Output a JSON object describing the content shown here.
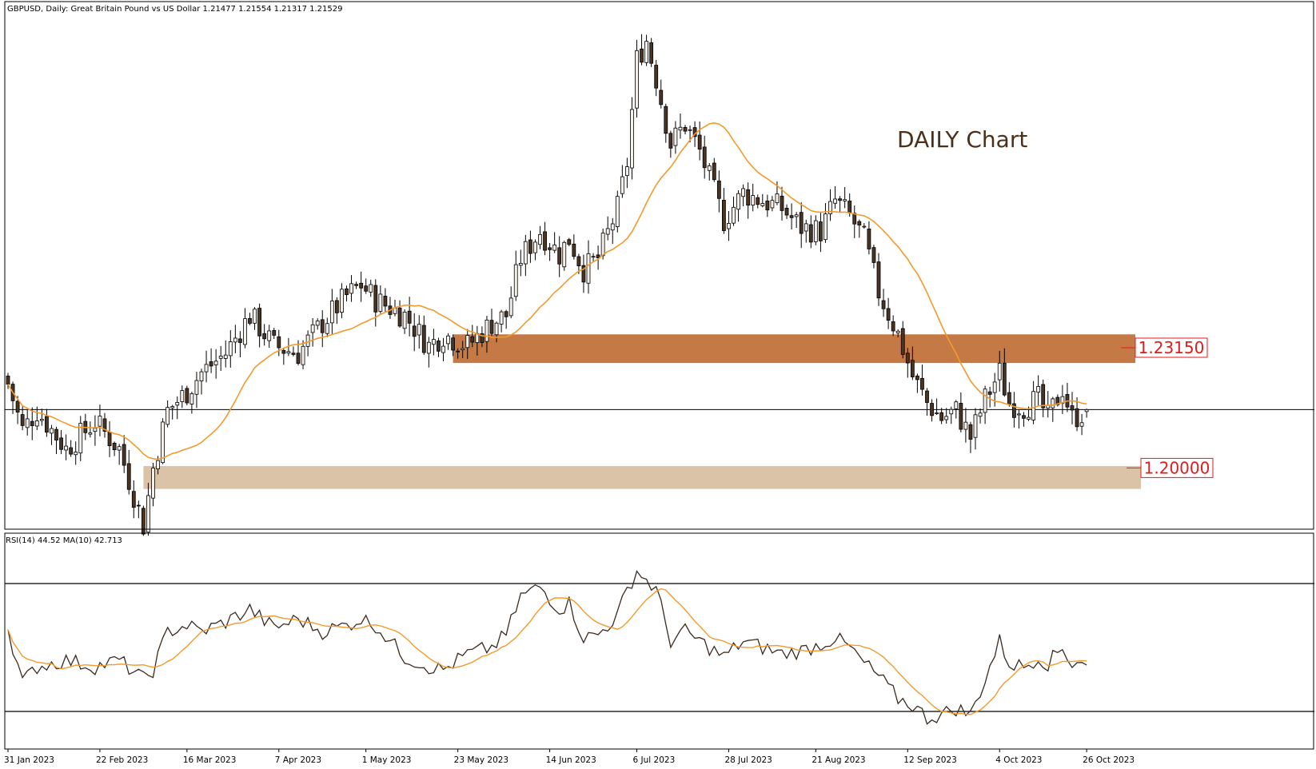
{
  "header": {
    "symbol_line": "GBPUSD, Daily:  Great Britain Pound vs US Dollar  1.21477 1.21554 1.21317 1.21529"
  },
  "annotation": {
    "title": "DAILY Chart"
  },
  "rsi_header": "RSI(14) 44.52 MA(10) 42.713",
  "colors": {
    "bull": "#f5f1ea",
    "bear": "#4a3424",
    "ma": "#f39a2c",
    "rsi": "#3a2a20",
    "resistance_zone": "#c57a46",
    "support_zone": "#dbc3a8",
    "level_label": "#e11b1b"
  },
  "chart_data": [
    {
      "type": "candlestick",
      "title": "GBPUSD, Daily",
      "x_ticks": [
        "31 Jan 2023",
        "22 Feb 2023",
        "16 Mar 2023",
        "7 Apr 2023",
        "1 May 2023",
        "23 May 2023",
        "14 Jun 2023",
        "6 Jul 2023",
        "28 Jul 2023",
        "21 Aug 2023",
        "12 Sep 2023",
        "4 Oct 2023",
        "26 Oct 2023"
      ],
      "ylim": [
        1.185,
        1.318
      ],
      "last_price": 1.21529,
      "moving_average": {
        "name": "MA",
        "color": "#f39a2c"
      },
      "zones": [
        {
          "name": "resistance",
          "low": 1.2275,
          "high": 1.235,
          "label": "1.23150",
          "level": 1.2315
        },
        {
          "name": "support",
          "low": 1.1945,
          "high": 1.2005,
          "label": "1.20000",
          "level": 1.2
        }
      ],
      "anchors": [
        [
          0,
          1.222
        ],
        [
          3,
          1.21
        ],
        [
          6,
          1.215
        ],
        [
          12,
          1.205
        ],
        [
          18,
          1.212
        ],
        [
          23,
          1.205
        ],
        [
          28,
          1.185
        ],
        [
          30,
          1.2
        ],
        [
          33,
          1.215
        ],
        [
          37,
          1.22
        ],
        [
          40,
          1.225
        ],
        [
          45,
          1.23
        ],
        [
          50,
          1.24
        ],
        [
          55,
          1.232
        ],
        [
          60,
          1.23
        ],
        [
          65,
          1.238
        ],
        [
          70,
          1.245
        ],
        [
          73,
          1.248
        ],
        [
          76,
          1.244
        ],
        [
          82,
          1.24
        ],
        [
          87,
          1.232
        ],
        [
          90,
          1.235
        ],
        [
          95,
          1.232
        ],
        [
          100,
          1.238
        ],
        [
          103,
          1.24
        ],
        [
          106,
          1.255
        ],
        [
          110,
          1.262
        ],
        [
          114,
          1.256
        ],
        [
          116,
          1.26
        ],
        [
          119,
          1.252
        ],
        [
          122,
          1.255
        ],
        [
          126,
          1.268
        ],
        [
          128,
          1.28
        ],
        [
          130,
          1.307
        ],
        [
          132,
          1.312
        ],
        [
          134,
          1.302
        ],
        [
          137,
          1.285
        ],
        [
          140,
          1.29
        ],
        [
          143,
          1.283
        ],
        [
          148,
          1.265
        ],
        [
          152,
          1.272
        ],
        [
          156,
          1.27
        ],
        [
          160,
          1.268
        ],
        [
          164,
          1.263
        ],
        [
          168,
          1.262
        ],
        [
          171,
          1.27
        ],
        [
          174,
          1.266
        ],
        [
          177,
          1.26
        ],
        [
          180,
          1.246
        ],
        [
          184,
          1.235
        ],
        [
          187,
          1.224
        ],
        [
          190,
          1.217
        ],
        [
          193,
          1.213
        ],
        [
          196,
          1.215
        ],
        [
          199,
          1.208
        ],
        [
          202,
          1.218
        ],
        [
          205,
          1.225
        ],
        [
          207,
          1.217
        ],
        [
          210,
          1.216
        ],
        [
          213,
          1.218
        ],
        [
          215,
          1.213
        ],
        [
          218,
          1.221
        ],
        [
          220,
          1.213
        ],
        [
          223,
          1.215
        ]
      ]
    },
    {
      "type": "line",
      "title": "RSI(14)",
      "ylim": [
        20,
        80
      ],
      "levels": [
        70,
        30
      ],
      "series": [
        {
          "name": "RSI(14)"
        },
        {
          "name": "MA(10)"
        }
      ],
      "anchors": [
        [
          0,
          56
        ],
        [
          3,
          39
        ],
        [
          6,
          44
        ],
        [
          12,
          46
        ],
        [
          18,
          44
        ],
        [
          23,
          46
        ],
        [
          28,
          40
        ],
        [
          30,
          43
        ],
        [
          33,
          55
        ],
        [
          37,
          57
        ],
        [
          40,
          55
        ],
        [
          45,
          58
        ],
        [
          50,
          62
        ],
        [
          55,
          56
        ],
        [
          60,
          59
        ],
        [
          65,
          55
        ],
        [
          70,
          57
        ],
        [
          73,
          59
        ],
        [
          76,
          57
        ],
        [
          82,
          47
        ],
        [
          87,
          44
        ],
        [
          90,
          43
        ],
        [
          95,
          48
        ],
        [
          100,
          50
        ],
        [
          103,
          54
        ],
        [
          106,
          66
        ],
        [
          110,
          69
        ],
        [
          114,
          62
        ],
        [
          116,
          64
        ],
        [
          119,
          53
        ],
        [
          122,
          54
        ],
        [
          126,
          60
        ],
        [
          128,
          68
        ],
        [
          130,
          74
        ],
        [
          132,
          71
        ],
        [
          134,
          68
        ],
        [
          137,
          52
        ],
        [
          140,
          55
        ],
        [
          143,
          52
        ],
        [
          148,
          47
        ],
        [
          152,
          52
        ],
        [
          156,
          50
        ],
        [
          160,
          48
        ],
        [
          164,
          49
        ],
        [
          168,
          51
        ],
        [
          171,
          53
        ],
        [
          174,
          50
        ],
        [
          177,
          45
        ],
        [
          180,
          41
        ],
        [
          184,
          34
        ],
        [
          187,
          32
        ],
        [
          190,
          28
        ],
        [
          193,
          29
        ],
        [
          196,
          31
        ],
        [
          199,
          29
        ],
        [
          202,
          40
        ],
        [
          205,
          52
        ],
        [
          207,
          45
        ],
        [
          210,
          44
        ],
        [
          213,
          47
        ],
        [
          215,
          45
        ],
        [
          218,
          50
        ],
        [
          220,
          45
        ],
        [
          223,
          47
        ]
      ],
      "last_rsi": 44.52,
      "last_ma": 42.713
    }
  ]
}
